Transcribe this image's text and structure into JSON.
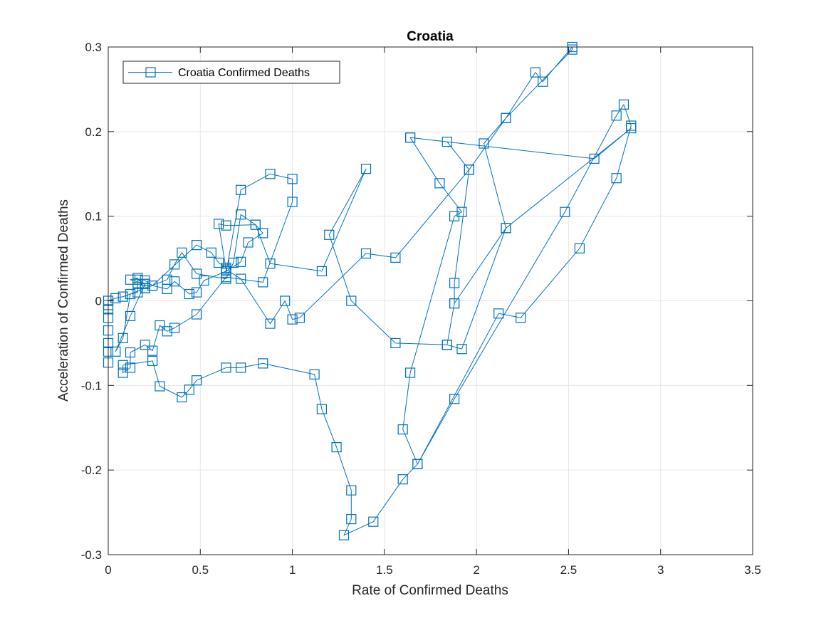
{
  "chart_data": {
    "type": "line",
    "title": "Croatia",
    "xlabel": "Rate of Confirmed Deaths",
    "ylabel": "Acceleration of Confirmed Deaths",
    "xlim": [
      0,
      3.5
    ],
    "ylim": [
      -0.3,
      0.3
    ],
    "x_ticks": [
      0,
      0.5,
      1,
      1.5,
      2,
      2.5,
      3,
      3.5
    ],
    "x_tick_labels": [
      "0",
      "0.5",
      "1",
      "1.5",
      "2",
      "2.5",
      "3",
      "3.5"
    ],
    "y_ticks": [
      -0.3,
      -0.2,
      -0.1,
      0,
      0.1,
      0.2,
      0.3
    ],
    "y_tick_labels": [
      "-0.3",
      "-0.2",
      "-0.1",
      "0",
      "0.1",
      "0.2",
      "0.3"
    ],
    "grid": true,
    "legend_position": "top-left",
    "series_color": "#0072BD",
    "marker": "square",
    "series": [
      {
        "name": "Croatia Confirmed Deaths",
        "points": [
          [
            0,
            -0.073
          ],
          [
            0,
            -0.06
          ],
          [
            0,
            -0.05
          ],
          [
            0,
            -0.035
          ],
          [
            0,
            -0.02
          ],
          [
            0,
            -0.01
          ],
          [
            0,
            -0.005
          ],
          [
            0,
            0
          ],
          [
            0.04,
            0.003
          ],
          [
            0.08,
            0.005
          ],
          [
            0.12,
            0.008
          ],
          [
            0.16,
            0.01
          ],
          [
            0.16,
            0.02
          ],
          [
            0.16,
            0.027
          ],
          [
            0.12,
            0.025
          ],
          [
            0.2,
            0.02
          ],
          [
            0.2,
            0.015
          ],
          [
            0.24,
            0.018
          ],
          [
            0.32,
            0.014
          ],
          [
            0.36,
            0.023
          ],
          [
            0.44,
            0.008
          ],
          [
            0.48,
            0.01
          ],
          [
            0.52,
            0.024
          ],
          [
            0.64,
            0.035
          ],
          [
            0.72,
            0.046
          ],
          [
            0.76,
            0.069
          ],
          [
            0.84,
            0.08
          ],
          [
            0.8,
            0.09
          ],
          [
            0.72,
            0.102
          ],
          [
            0.68,
            0.045
          ],
          [
            0.64,
            0.026
          ],
          [
            0.48,
            0.032
          ],
          [
            0.4,
            0.057
          ],
          [
            0.36,
            0.043
          ],
          [
            0.32,
            0.025
          ],
          [
            0.2,
            0.015
          ],
          [
            0.12,
            0.008
          ],
          [
            0.08,
            -0.044
          ],
          [
            0.04,
            -0.06
          ],
          [
            0.12,
            -0.018
          ],
          [
            0.2,
            0.02
          ],
          [
            0.16,
            0.025
          ],
          [
            0.2,
            0.024
          ],
          [
            0.24,
            0.018
          ],
          [
            0.48,
            0.066
          ],
          [
            0.56,
            0.057
          ],
          [
            0.6,
            0.045
          ],
          [
            0.64,
            0.039
          ],
          [
            0.64,
            0.033
          ],
          [
            0.72,
            0.131
          ],
          [
            0.88,
            0.15
          ],
          [
            1.0,
            0.144
          ],
          [
            1.0,
            0.117
          ],
          [
            0.84,
            0.022
          ],
          [
            0.64,
            0.028
          ],
          [
            0.48,
            -0.016
          ],
          [
            0.36,
            -0.032
          ],
          [
            0.32,
            -0.036
          ],
          [
            0.28,
            -0.029
          ],
          [
            0.24,
            -0.059
          ],
          [
            0.2,
            -0.052
          ],
          [
            0.12,
            -0.061
          ],
          [
            0.12,
            -0.079
          ],
          [
            0.08,
            -0.085
          ],
          [
            0.08,
            -0.076
          ],
          [
            0.24,
            -0.071
          ],
          [
            0.28,
            -0.101
          ],
          [
            0.4,
            -0.114
          ],
          [
            0.44,
            -0.105
          ],
          [
            0.48,
            -0.094
          ],
          [
            0.64,
            -0.079
          ],
          [
            0.72,
            -0.079
          ],
          [
            0.84,
            -0.074
          ],
          [
            1.12,
            -0.087
          ],
          [
            1.16,
            -0.128
          ],
          [
            1.24,
            -0.173
          ],
          [
            1.32,
            -0.224
          ],
          [
            1.32,
            -0.258
          ],
          [
            1.28,
            -0.277
          ],
          [
            1.44,
            -0.261
          ],
          [
            1.6,
            -0.211
          ],
          [
            1.68,
            -0.193
          ],
          [
            2.12,
            -0.015
          ],
          [
            2.24,
            -0.02
          ],
          [
            2.56,
            0.062
          ],
          [
            2.76,
            0.145
          ],
          [
            2.84,
            0.207
          ],
          [
            2.8,
            0.232
          ],
          [
            2.76,
            0.219
          ],
          [
            2.48,
            0.105
          ],
          [
            1.88,
            -0.116
          ],
          [
            1.68,
            -0.193
          ],
          [
            1.6,
            -0.152
          ],
          [
            1.64,
            -0.085
          ],
          [
            1.88,
            0.1
          ],
          [
            1.92,
            0.105
          ],
          [
            1.8,
            0.139
          ],
          [
            1.64,
            0.193
          ],
          [
            1.84,
            0.188
          ],
          [
            1.96,
            0.155
          ],
          [
            1.88,
            0.021
          ],
          [
            1.88,
            -0.003
          ],
          [
            1.84,
            -0.052
          ],
          [
            1.92,
            -0.057
          ],
          [
            2.16,
            0.086
          ],
          [
            2.04,
            0.186
          ],
          [
            2.16,
            0.216
          ],
          [
            2.32,
            0.27
          ],
          [
            2.36,
            0.259
          ],
          [
            2.52,
            0.3
          ],
          [
            2.52,
            0.297
          ],
          [
            2.16,
            0.216
          ],
          [
            1.96,
            0.155
          ],
          [
            1.56,
            0.051
          ],
          [
            1.4,
            0.056
          ],
          [
            1.04,
            -0.02
          ],
          [
            1.0,
            -0.022
          ],
          [
            0.96,
            0
          ],
          [
            0.88,
            -0.027
          ],
          [
            0.72,
            0.026
          ],
          [
            0.64,
            0.037
          ],
          [
            0.6,
            0.091
          ],
          [
            0.64,
            0.089
          ],
          [
            0.8,
            0.09
          ],
          [
            0.88,
            0.044
          ],
          [
            1.16,
            0.035
          ],
          [
            1.4,
            0.156
          ],
          [
            1.2,
            0.078
          ],
          [
            1.32,
            0
          ],
          [
            1.56,
            -0.05
          ],
          [
            1.84,
            -0.052
          ],
          [
            1.88,
            -0.003
          ],
          [
            2.16,
            0.086
          ],
          [
            2.84,
            0.204
          ],
          [
            2.64,
            0.168
          ],
          [
            1.64,
            0.193
          ]
        ]
      }
    ]
  }
}
